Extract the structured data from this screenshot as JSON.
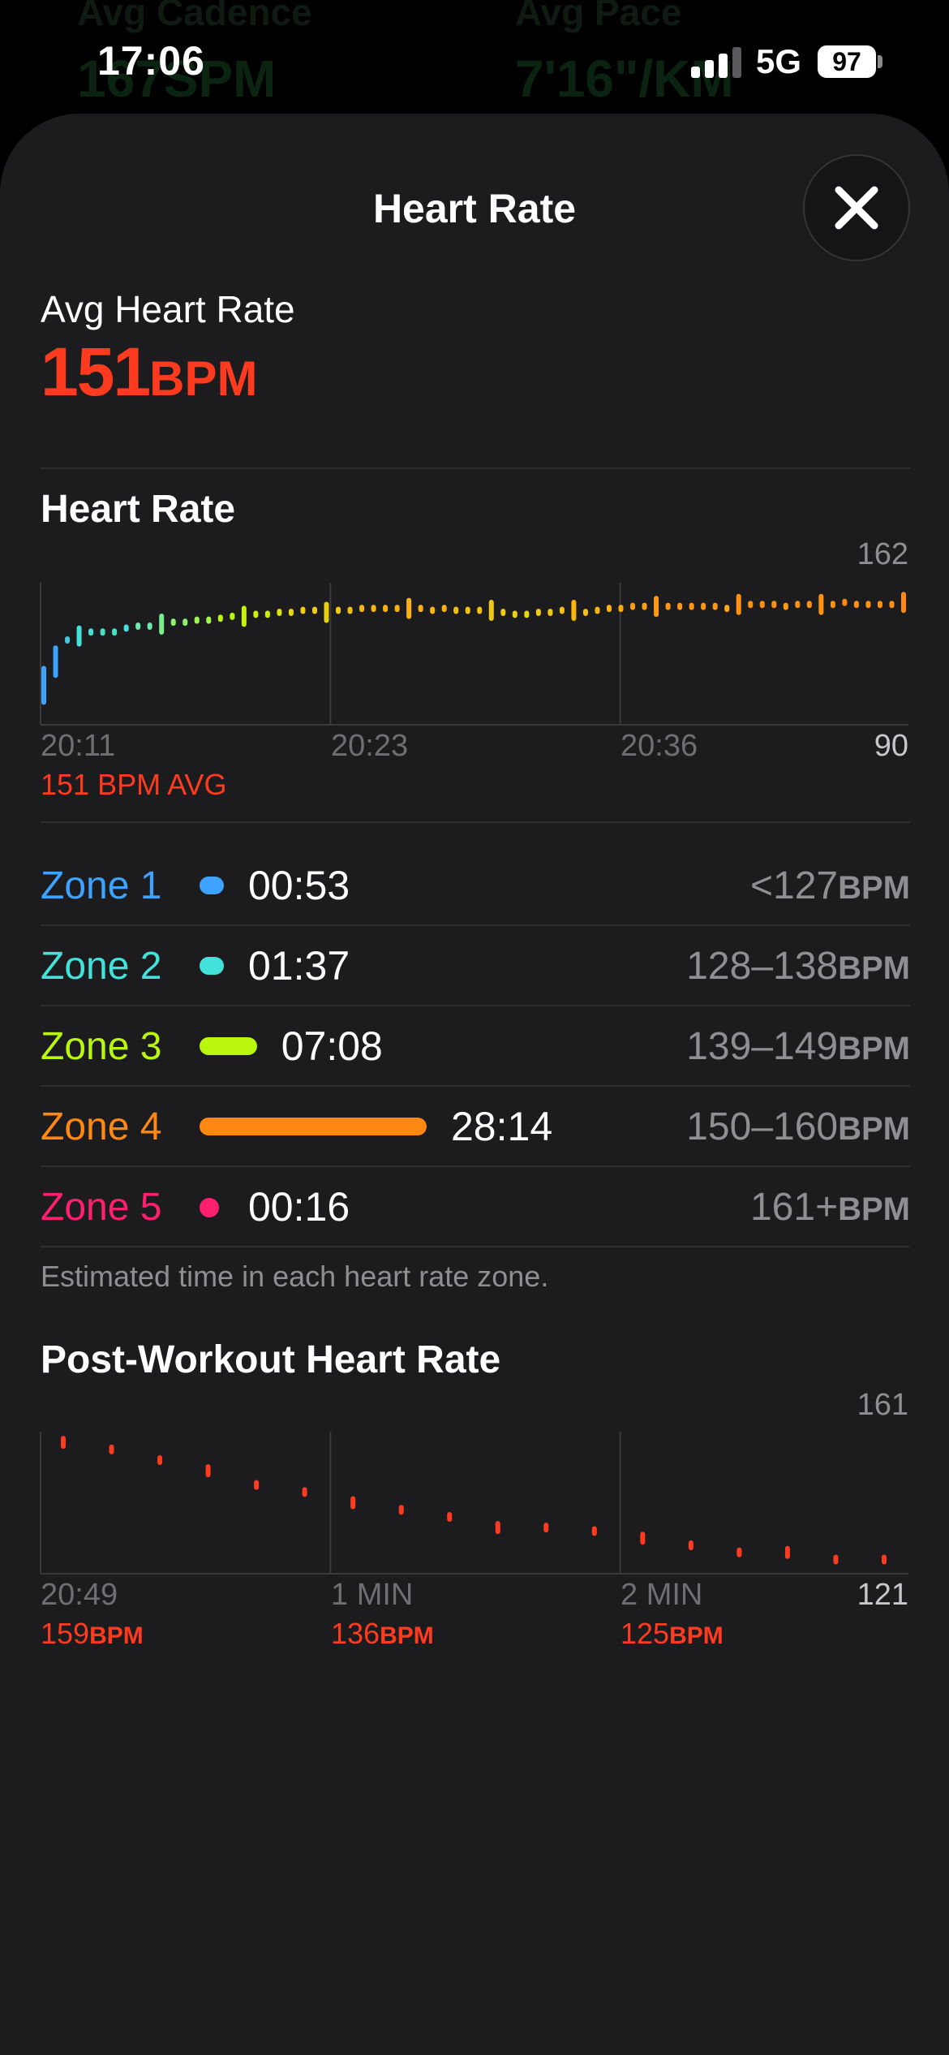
{
  "background": {
    "cadence_label": "Avg Cadence",
    "cadence_value": "167SPM",
    "pace_label": "Avg Pace",
    "pace_value": "7'16\"/KM"
  },
  "status_bar": {
    "time": "17:06",
    "network": "5G",
    "battery": "97"
  },
  "sheet": {
    "title": "Heart Rate",
    "close_icon": "close-icon"
  },
  "summary": {
    "label": "Avg Heart Rate",
    "value": "151",
    "unit": "BPM",
    "color": "#ff3b1f"
  },
  "heart_rate_section": {
    "title": "Heart Rate",
    "avg_label": "151 BPM AVG"
  },
  "zones": {
    "items": [
      {
        "name": "Zone 1",
        "time": "00:53",
        "range": "<127",
        "unit": "BPM",
        "color": "#3ea2ff",
        "share": 0.0237
      },
      {
        "name": "Zone 2",
        "time": "01:37",
        "range": "128–138",
        "unit": "BPM",
        "color": "#42e2da",
        "share": 0.0433
      },
      {
        "name": "Zone 3",
        "time": "07:08",
        "range": "139–149",
        "unit": "BPM",
        "color": "#b9f70e",
        "share": 0.1911
      },
      {
        "name": "Zone 4",
        "time": "28:14",
        "range": "150–160",
        "unit": "BPM",
        "color": "#ff8810",
        "share": 0.7566
      },
      {
        "name": "Zone 5",
        "time": "00:16",
        "range": "161+",
        "unit": "BPM",
        "color": "#ff1f6e",
        "share": 0.0071
      }
    ],
    "note": "Estimated time in each heart rate zone."
  },
  "post_workout": {
    "title": "Post-Workout Heart Rate",
    "markers": [
      {
        "label": "20:49",
        "value": "159",
        "unit": "BPM"
      },
      {
        "label": "1 MIN",
        "value": "136",
        "unit": "BPM"
      },
      {
        "label": "2 MIN",
        "value": "125",
        "unit": "BPM"
      }
    ]
  },
  "chart_data": [
    {
      "type": "scatter",
      "title": "Heart Rate",
      "x_tick_labels": [
        "20:11",
        "20:23",
        "20:36"
      ],
      "y_max_label": "162",
      "y_min_label": "90",
      "ylim": [
        90,
        162
      ],
      "x": [
        0,
        0.5,
        1,
        1.5,
        2,
        2.5,
        3,
        3.5,
        4,
        4.5,
        5,
        5.5,
        6,
        6.5,
        7,
        7.5,
        8,
        8.5,
        9,
        9.5,
        10,
        10.5,
        11,
        11.5,
        12,
        12.5,
        13,
        13.5,
        14,
        14.5,
        15,
        15.5,
        16,
        16.5,
        17,
        17.5,
        18,
        18.5,
        19,
        19.5,
        20,
        20.5,
        21,
        21.5,
        22,
        22.5,
        23,
        23.5,
        24,
        24.5,
        25,
        25.5,
        26,
        26.5,
        27,
        27.5,
        28,
        28.5,
        29,
        29.5,
        30,
        30.5,
        31,
        31.5,
        32,
        32.5,
        33,
        33.5,
        34,
        34.5,
        35,
        35.5,
        36,
        36.5
      ],
      "y": [
        110,
        122,
        133,
        135,
        137,
        137,
        137,
        139,
        140,
        140,
        141,
        142,
        142,
        143,
        143,
        144,
        145,
        145,
        146,
        146,
        147,
        147,
        148,
        148,
        147,
        148,
        148,
        149,
        149,
        149,
        149,
        149,
        149,
        148,
        149,
        148,
        148,
        148,
        148,
        147,
        146,
        146,
        147,
        147,
        148,
        148,
        147,
        148,
        149,
        149,
        150,
        150,
        150,
        150,
        150,
        150,
        150,
        150,
        149,
        151,
        151,
        151,
        151,
        150,
        151,
        151,
        151,
        151,
        152,
        151,
        151,
        151,
        151,
        152
      ],
      "colors": [
        "#3ea2ff",
        "#3ea2ff",
        "#42c9e2",
        "#42e2da",
        "#42e2da",
        "#4be2c4",
        "#4be2c4",
        "#42e2da",
        "#6ee8a8",
        "#6ee8a8",
        "#7aed8c",
        "#8ef06e",
        "#8ef06e",
        "#a0f450",
        "#a0f450",
        "#b9f70e",
        "#b9f70e",
        "#c4f20e",
        "#c9f00f",
        "#d0ec10",
        "#dfe20f",
        "#e6d810",
        "#f0cc10",
        "#f0cc10",
        "#e8d010",
        "#f0cc10",
        "#f4c010",
        "#f7b610",
        "#f7b610",
        "#fab010",
        "#fab010",
        "#fab010",
        "#fab010",
        "#f7b810",
        "#fab010",
        "#f4c010",
        "#f4c010",
        "#f4c010",
        "#f0c810",
        "#f0cc10",
        "#e8d010",
        "#e0d810",
        "#f0cc10",
        "#f0c810",
        "#f4c010",
        "#f7b610",
        "#f4c010",
        "#f7b610",
        "#fab010",
        "#fca810",
        "#ff9d12",
        "#ff9d12",
        "#ff9812",
        "#ff9812",
        "#ff9812",
        "#ff9812",
        "#ff9812",
        "#ff9812",
        "#fca810",
        "#ff9012",
        "#ff9012",
        "#ff9012",
        "#ff9012",
        "#ff9812",
        "#ff9012",
        "#ff9012",
        "#ff9012",
        "#ff9012",
        "#ff8810",
        "#ff9012",
        "#ff9012",
        "#ff9012",
        "#ff9012",
        "#ff8810"
      ],
      "avg": 151,
      "grid": "vertical"
    },
    {
      "type": "scatter",
      "title": "Post-Workout Heart Rate",
      "x_tick_labels": [
        "20:49",
        "1 MIN",
        "2 MIN"
      ],
      "y_max_label": "161",
      "y_min_label": "121",
      "ylim": [
        121,
        161
      ],
      "x": [
        0,
        10,
        20,
        30,
        40,
        50,
        60,
        70,
        80,
        90,
        100,
        110,
        120,
        130,
        140,
        150,
        160,
        170
      ],
      "y": [
        158,
        156,
        153,
        150,
        146,
        144,
        141,
        139,
        137,
        134,
        134,
        133,
        131,
        129,
        127,
        127,
        125,
        125
      ],
      "color": "#ff3b1f",
      "grid": "vertical"
    }
  ]
}
